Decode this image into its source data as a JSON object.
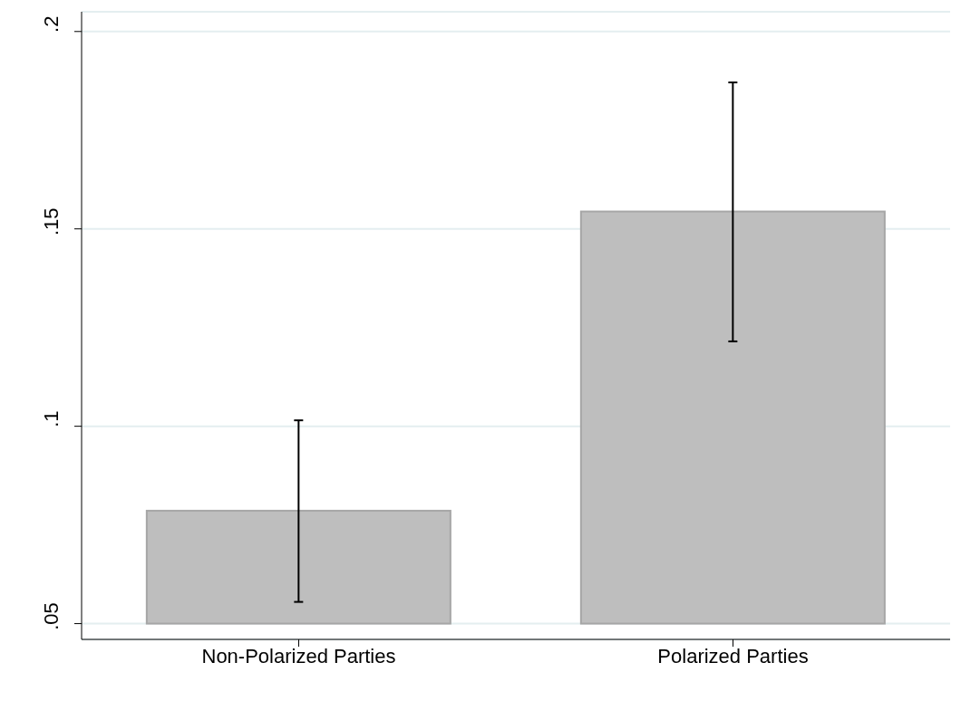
{
  "chart_data": {
    "type": "bar",
    "categories": [
      "Non-Polarized Parties",
      "Polarized Parties"
    ],
    "base": [
      0.05,
      0.05
    ],
    "values": [
      0.0286,
      0.1044
    ],
    "errors": [
      [
        0.0555,
        0.1015
      ],
      [
        0.1215,
        0.1871
      ]
    ],
    "color": "#bebebe",
    "ylim": [
      0.046,
      0.205
    ],
    "yticks": [
      {
        "value": 0.05,
        "label": ".05"
      },
      {
        "value": 0.1,
        "label": ".1"
      },
      {
        "value": 0.15,
        "label": ".15"
      },
      {
        "value": 0.2,
        "label": ".2"
      }
    ],
    "grid": "y"
  }
}
